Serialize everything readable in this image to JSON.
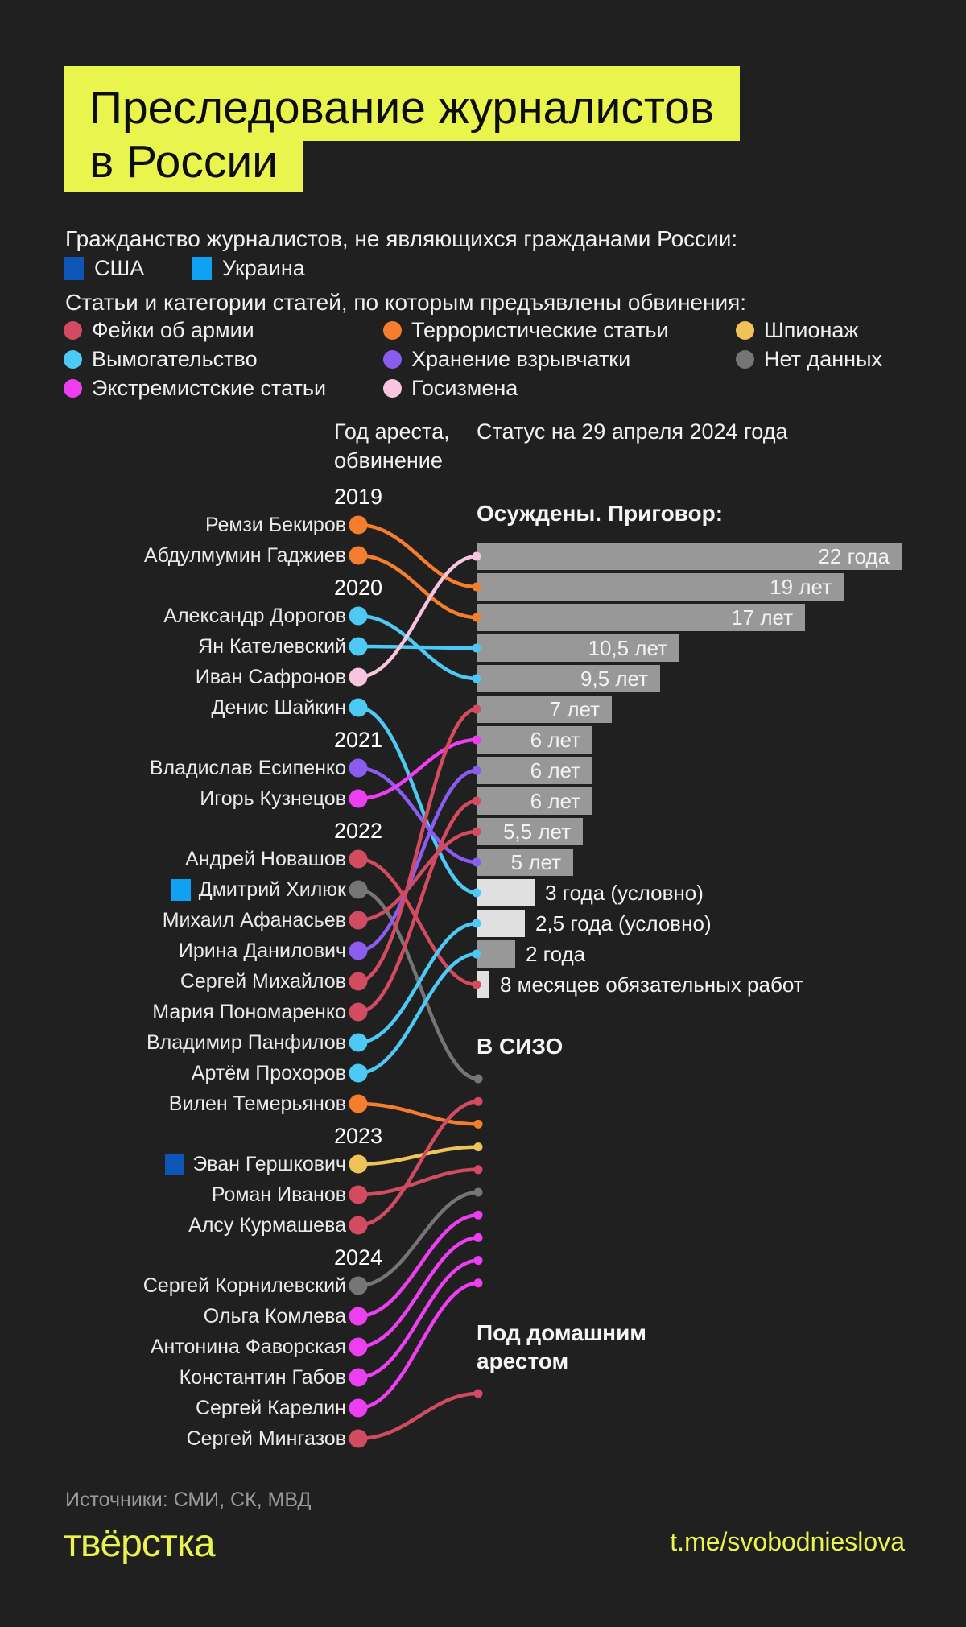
{
  "background": "#202020",
  "accent": "#e9f44c",
  "title": {
    "line1": "Преследование журналистов",
    "line2": "в России"
  },
  "legend": {
    "citizenship_title": "Гражданство журналистов, не являющихся гражданами России:",
    "citizenship": [
      {
        "key": "us",
        "label": "США",
        "color": "#0d56b8"
      },
      {
        "key": "ua",
        "label": "Украина",
        "color": "#0fa1f3"
      }
    ],
    "charges_title": "Статьи и категории статей, по которым предъявлены обвинения:",
    "charges": [
      {
        "key": "fakes",
        "label": "Фейки об армии",
        "color": "#d24b60"
      },
      {
        "key": "terror",
        "label": "Террористические статьи",
        "color": "#f57e2e"
      },
      {
        "key": "spy",
        "label": "Шпионаж",
        "color": "#f0c358"
      },
      {
        "key": "extortion",
        "label": "Вымогательство",
        "color": "#4cc9f5"
      },
      {
        "key": "explosives",
        "label": "Хранение взрывчатки",
        "color": "#8a5cf0"
      },
      {
        "key": "nodata",
        "label": "Нет данных",
        "color": "#757575"
      },
      {
        "key": "extremism",
        "label": "Экстремистские статьи",
        "color": "#ee3ef2"
      },
      {
        "key": "treason",
        "label": "Госизмена",
        "color": "#f7c5e0"
      }
    ]
  },
  "columns": {
    "left_line1": "Год ареста,",
    "left_line2": "обвинение",
    "right": "Статус на 29 апреля 2024 года"
  },
  "sections": {
    "convicted": "Осуждены. Приговор:",
    "pretrial": "В СИЗО",
    "house_line1": "Под домашним",
    "house_line2": "арестом"
  },
  "chart_data": {
    "type": "flow",
    "title": "Преследование журналистов в России",
    "status_date_label": "Статус на 29 апреля 2024 года",
    "sentences": [
      {
        "label": "22 года",
        "years": 22,
        "custodial": true
      },
      {
        "label": "19 лет",
        "years": 19,
        "custodial": true
      },
      {
        "label": "17 лет",
        "years": 17,
        "custodial": true
      },
      {
        "label": "10,5 лет",
        "years": 10.5,
        "custodial": true
      },
      {
        "label": "9,5 лет",
        "years": 9.5,
        "custodial": true
      },
      {
        "label": "7 лет",
        "years": 7,
        "custodial": true
      },
      {
        "label": "6 лет",
        "years": 6,
        "custodial": true
      },
      {
        "label": "6 лет",
        "years": 6,
        "custodial": true
      },
      {
        "label": "6 лет",
        "years": 6,
        "custodial": true
      },
      {
        "label": "5,5 лет",
        "years": 5.5,
        "custodial": true
      },
      {
        "label": "5 лет",
        "years": 5,
        "custodial": true
      },
      {
        "label": "3 года (условно)",
        "years": 3,
        "custodial": false
      },
      {
        "label": "2,5 года (условно)",
        "years": 2.5,
        "custodial": false
      },
      {
        "label": "2 года",
        "years": 2,
        "custodial": true
      },
      {
        "label": "8 месяцев обязательных работ",
        "years": 0.67,
        "custodial": false
      }
    ],
    "groups": [
      {
        "year": "2019",
        "journalists": [
          {
            "name": "Ремзи Бекиров",
            "charge": "terror",
            "outcome": "sentence",
            "sentence": 1
          },
          {
            "name": "Абдулмумин Гаджиев",
            "charge": "terror",
            "outcome": "sentence",
            "sentence": 2
          }
        ]
      },
      {
        "year": "2020",
        "journalists": [
          {
            "name": "Александр Дорогов",
            "charge": "extortion",
            "outcome": "sentence",
            "sentence": 4
          },
          {
            "name": "Ян Кателевский",
            "charge": "extortion",
            "outcome": "sentence",
            "sentence": 3
          },
          {
            "name": "Иван Сафронов",
            "charge": "treason",
            "outcome": "sentence",
            "sentence": 0
          },
          {
            "name": "Денис Шайкин",
            "charge": "extortion",
            "outcome": "sentence",
            "sentence": 11
          }
        ]
      },
      {
        "year": "2021",
        "journalists": [
          {
            "name": "Владислав Есипенко",
            "charge": "explosives",
            "outcome": "sentence",
            "sentence": 10
          },
          {
            "name": "Игорь Кузнецов",
            "charge": "extremism",
            "outcome": "sentence",
            "sentence": 6
          }
        ]
      },
      {
        "year": "2022",
        "journalists": [
          {
            "name": "Андрей Новашов",
            "charge": "fakes",
            "outcome": "sentence",
            "sentence": 14
          },
          {
            "name": "Дмитрий Хилюк",
            "charge": "nodata",
            "citizenship": "ua",
            "outcome": "pretrial",
            "slot": 0
          },
          {
            "name": "Михаил Афанасьев",
            "charge": "fakes",
            "outcome": "sentence",
            "sentence": 9
          },
          {
            "name": "Ирина Данилович",
            "charge": "explosives",
            "outcome": "sentence",
            "sentence": 7
          },
          {
            "name": "Сергей Михайлов",
            "charge": "fakes",
            "outcome": "sentence",
            "sentence": 5
          },
          {
            "name": "Мария Пономаренко",
            "charge": "fakes",
            "outcome": "sentence",
            "sentence": 8
          },
          {
            "name": "Владимир Панфилов",
            "charge": "extortion",
            "outcome": "sentence",
            "sentence": 12
          },
          {
            "name": "Артём Прохоров",
            "charge": "extortion",
            "outcome": "sentence",
            "sentence": 13
          },
          {
            "name": "Вилен Темерьянов",
            "charge": "terror",
            "outcome": "pretrial",
            "slot": 2
          }
        ]
      },
      {
        "year": "2023",
        "journalists": [
          {
            "name": "Эван Гершкович",
            "charge": "spy",
            "citizenship": "us",
            "outcome": "pretrial",
            "slot": 3
          },
          {
            "name": "Роман Иванов",
            "charge": "fakes",
            "outcome": "pretrial",
            "slot": 4
          },
          {
            "name": "Алсу Курмашева",
            "charge": "fakes",
            "outcome": "pretrial",
            "slot": 1
          }
        ]
      },
      {
        "year": "2024",
        "journalists": [
          {
            "name": "Сергей Корнилевский",
            "charge": "nodata",
            "outcome": "pretrial",
            "slot": 5
          },
          {
            "name": "Ольга Комлева",
            "charge": "extremism",
            "outcome": "pretrial",
            "slot": 6
          },
          {
            "name": "Антонина Фаворская",
            "charge": "extremism",
            "outcome": "pretrial",
            "slot": 7
          },
          {
            "name": "Константин Габов",
            "charge": "extremism",
            "outcome": "pretrial",
            "slot": 8
          },
          {
            "name": "Сергей Карелин",
            "charge": "extremism",
            "outcome": "pretrial",
            "slot": 9
          },
          {
            "name": "Сергей Мингазов",
            "charge": "fakes",
            "outcome": "house",
            "slot": 0
          }
        ]
      }
    ]
  },
  "footer": {
    "sources": "Источники: СМИ, СК, МВД",
    "logo": "твёрстка",
    "link": "t.me/svobodnieslova"
  }
}
